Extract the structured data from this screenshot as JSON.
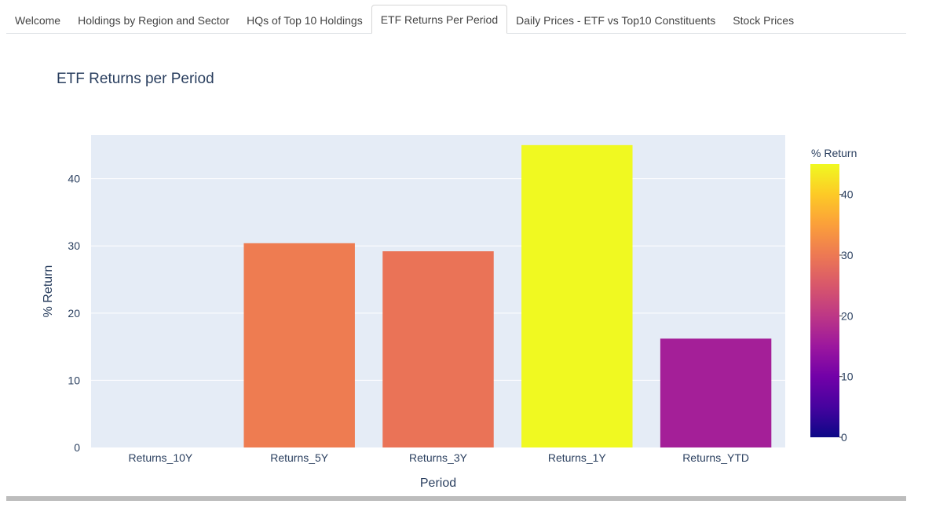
{
  "tabs": [
    {
      "label": "Welcome",
      "active": false
    },
    {
      "label": "Holdings by Region and Sector",
      "active": false
    },
    {
      "label": "HQs of Top 10 Holdings",
      "active": false
    },
    {
      "label": "ETF Returns Per Period",
      "active": true
    },
    {
      "label": "Daily Prices - ETF vs Top10 Constituents",
      "active": false
    },
    {
      "label": "Stock Prices",
      "active": false
    }
  ],
  "chart_data": {
    "type": "bar",
    "title": "ETF Returns per Period",
    "xlabel": "Period",
    "ylabel": "% Return",
    "categories": [
      "Returns_10Y",
      "Returns_5Y",
      "Returns_3Y",
      "Returns_1Y",
      "Returns_YTD"
    ],
    "values": [
      0,
      30.4,
      29.2,
      45.0,
      16.2
    ],
    "ylim": [
      0,
      46.5
    ],
    "yticks": [
      0,
      10,
      20,
      30,
      40
    ],
    "grid": true,
    "colorscale": "plasma",
    "colorbar": {
      "title": "% Return",
      "range": [
        0,
        45
      ],
      "ticks": [
        0,
        10,
        20,
        30,
        40
      ]
    },
    "colors": {
      "plot_bg": "#e5ecf6",
      "text": "#2a3f5f"
    }
  }
}
